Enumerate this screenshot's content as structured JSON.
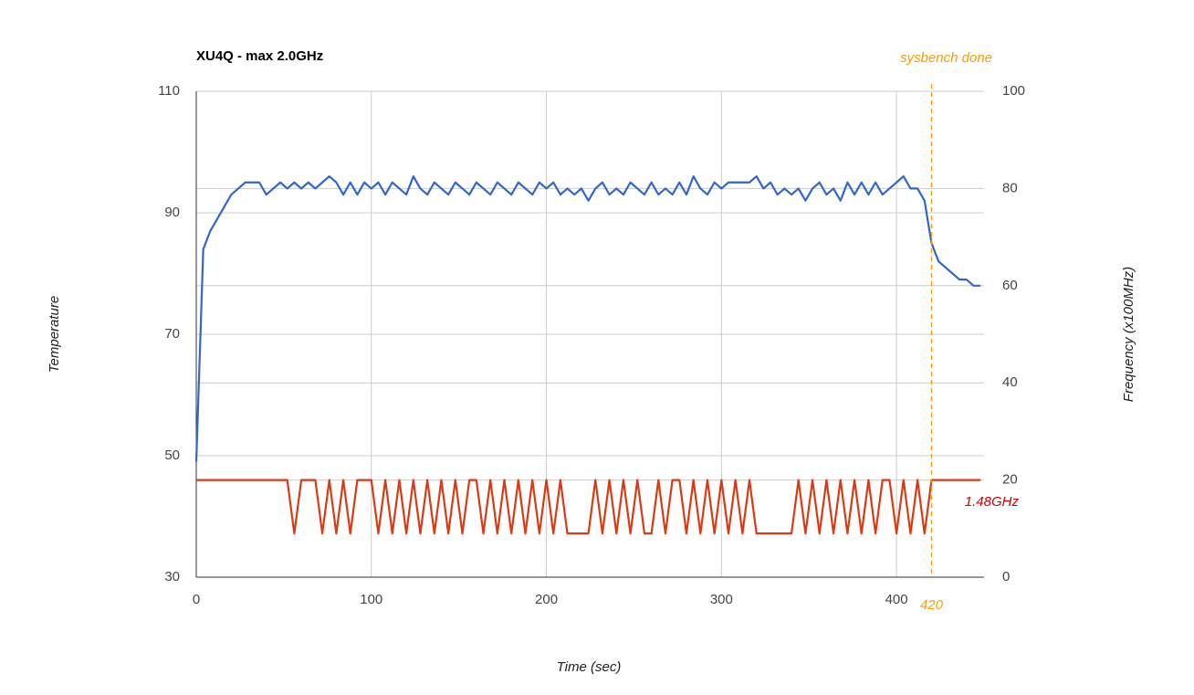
{
  "chart_data": {
    "type": "line",
    "title": "XU4Q - max 2.0GHz",
    "xlabel": "Time (sec)",
    "ylabel": "Temperature",
    "y2label": "Frequency (x100MHz)",
    "x": [
      0,
      4,
      8,
      12,
      16,
      20,
      24,
      28,
      32,
      36,
      40,
      44,
      48,
      52,
      56,
      60,
      64,
      68,
      72,
      76,
      80,
      84,
      88,
      92,
      96,
      100,
      104,
      108,
      112,
      116,
      120,
      124,
      128,
      132,
      136,
      140,
      144,
      148,
      152,
      156,
      160,
      164,
      168,
      172,
      176,
      180,
      184,
      188,
      192,
      196,
      200,
      204,
      208,
      212,
      216,
      220,
      224,
      228,
      232,
      236,
      240,
      244,
      248,
      252,
      256,
      260,
      264,
      268,
      272,
      276,
      280,
      284,
      288,
      292,
      296,
      300,
      304,
      308,
      312,
      316,
      320,
      324,
      328,
      332,
      336,
      340,
      344,
      348,
      352,
      356,
      360,
      364,
      368,
      372,
      376,
      380,
      384,
      388,
      392,
      396,
      400,
      404,
      408,
      412,
      416,
      420,
      424,
      428,
      432,
      436,
      440,
      444,
      448
    ],
    "series": [
      {
        "color": "#3366cc",
        "values": [
          49,
          84,
          87,
          89,
          91,
          93,
          94,
          95,
          95,
          95,
          93,
          94,
          95,
          94,
          95,
          94,
          95,
          94,
          95,
          96,
          95,
          93,
          95,
          93,
          95,
          94,
          95,
          93,
          95,
          94,
          93,
          96,
          94,
          93,
          95,
          94,
          93,
          95,
          94,
          93,
          95,
          94,
          93,
          95,
          94,
          93,
          95,
          94,
          93,
          95,
          94,
          95,
          93,
          94,
          93,
          94,
          92,
          94,
          95,
          93,
          94,
          93,
          95,
          94,
          93,
          95,
          93,
          94,
          93,
          95,
          93,
          96,
          94,
          93,
          95,
          94,
          95,
          95,
          95,
          95,
          96,
          94,
          95,
          93,
          94,
          93,
          94,
          92,
          94,
          95,
          93,
          94,
          92,
          95,
          93,
          95,
          93,
          95,
          93,
          94,
          95,
          96,
          94,
          94,
          92,
          85,
          82,
          81,
          80,
          79,
          79,
          78,
          78
        ]
      },
      {
        "color": "#dc3912",
        "axis": "y2",
        "values": [
          20,
          20,
          20,
          20,
          20,
          20,
          20,
          20,
          20,
          20,
          20,
          20,
          20,
          20,
          9,
          20,
          20,
          20,
          9,
          20,
          9,
          20,
          9,
          20,
          20,
          20,
          9,
          20,
          9,
          20,
          9,
          20,
          9,
          20,
          9,
          20,
          9,
          20,
          9,
          20,
          20,
          9,
          20,
          9,
          20,
          9,
          20,
          9,
          20,
          9,
          20,
          9,
          20,
          9,
          9,
          9,
          9,
          20,
          9,
          20,
          9,
          20,
          9,
          20,
          9,
          9,
          20,
          9,
          20,
          20,
          9,
          20,
          9,
          20,
          9,
          20,
          9,
          20,
          9,
          20,
          9,
          9,
          9,
          9,
          9,
          9,
          20,
          9,
          20,
          9,
          20,
          9,
          20,
          9,
          20,
          9,
          20,
          9,
          20,
          20,
          9,
          20,
          9,
          20,
          9,
          20,
          20,
          20,
          20,
          20,
          20,
          20,
          20
        ]
      }
    ],
    "xlim": [
      0,
      450
    ],
    "xticks": [
      0,
      100,
      200,
      300,
      400
    ],
    "ylim": [
      30,
      110
    ],
    "yticks": [
      30,
      50,
      70,
      90,
      110
    ],
    "y2lim": [
      0,
      100
    ],
    "y2ticks": [
      0,
      20,
      40,
      60,
      80,
      100
    ],
    "grid": true,
    "vline": {
      "x": 420,
      "text": "sysbench done",
      "color": "#ff9900"
    },
    "annotation": {
      "text": "1.48GHz",
      "color": "#cc0000"
    }
  }
}
